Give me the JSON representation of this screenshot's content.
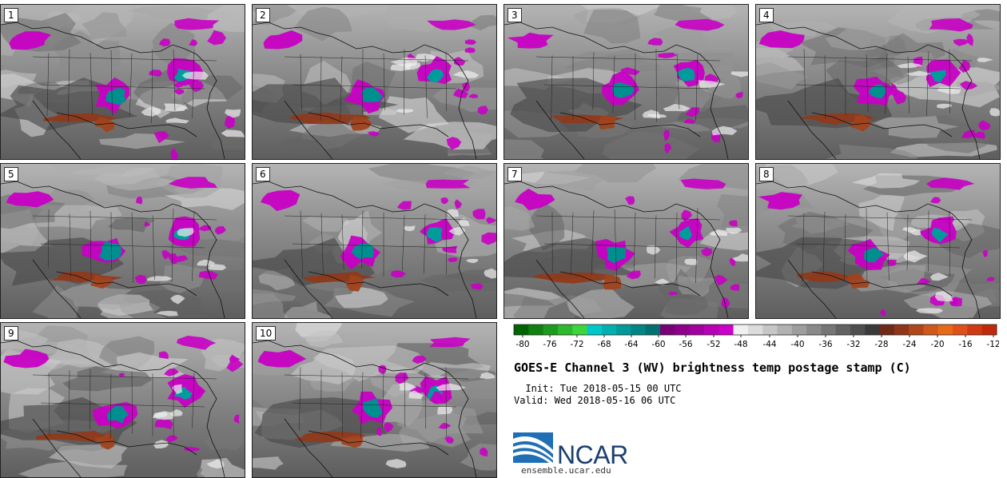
{
  "panels": [
    {
      "label": "1"
    },
    {
      "label": "2"
    },
    {
      "label": "3"
    },
    {
      "label": "4"
    },
    {
      "label": "5"
    },
    {
      "label": "6"
    },
    {
      "label": "7"
    },
    {
      "label": "8"
    },
    {
      "label": "9"
    },
    {
      "label": "10"
    }
  ],
  "legend": {
    "ticks": [
      "-80",
      "-76",
      "-72",
      "-68",
      "-64",
      "-60",
      "-56",
      "-52",
      "-48",
      "-44",
      "-40",
      "-36",
      "-32",
      "-28",
      "-24",
      "-20",
      "-16",
      "-12"
    ],
    "colors": [
      "#006400",
      "#108010",
      "#1e9a1e",
      "#2db82d",
      "#3cd63c",
      "#00c8c8",
      "#00b0b0",
      "#009999",
      "#008585",
      "#007070",
      "#7a0078",
      "#8e008c",
      "#a300a0",
      "#b900b5",
      "#cc00c8",
      "#f0f0f0",
      "#dcdcdc",
      "#c6c6c6",
      "#b2b2b2",
      "#9e9e9e",
      "#8a8a8a",
      "#767676",
      "#626262",
      "#4e4e4e",
      "#3a3a3a",
      "#702a18",
      "#8f3618",
      "#b0461a",
      "#d0581c",
      "#e86a18",
      "#e0501a",
      "#d03a12",
      "#c02a0a"
    ]
  },
  "title": "GOES-E Channel 3 (WV) brightness temp postage stamp (C)",
  "init": "  Init: Tue 2018-05-15 00 UTC",
  "valid": "Valid: Wed 2018-05-16 06 UTC",
  "logo": {
    "text": "NCAR",
    "url": "ensemble.ucar.edu"
  }
}
